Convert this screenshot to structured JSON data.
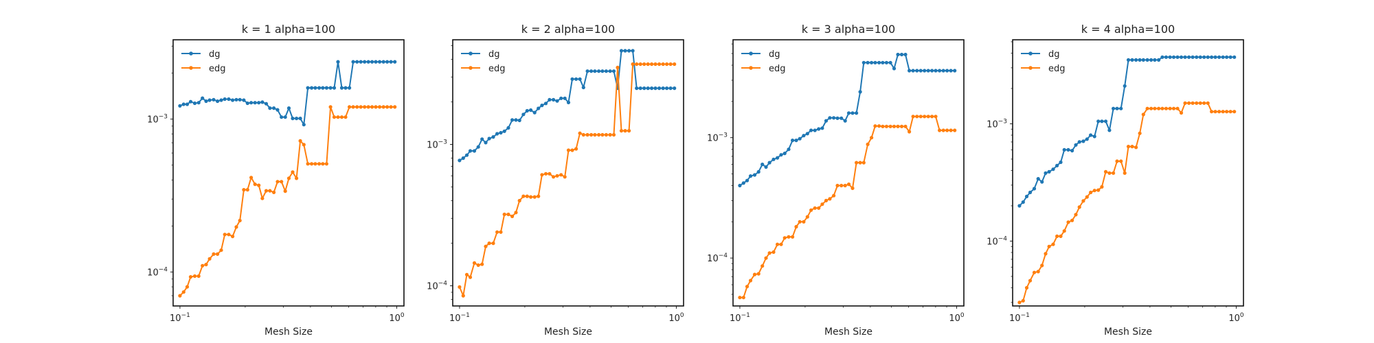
{
  "chart_data": [
    {
      "type": "line",
      "title": "k = 1 alpha=100",
      "xlabel": "Mesh Size",
      "ylabel": "",
      "xscale": "log",
      "yscale": "log",
      "xlim": [
        0.093,
        1.08
      ],
      "ylim": [
        6e-05,
        0.0033
      ],
      "xticks": [
        {
          "value": 0.1,
          "base": "10",
          "exp": "−1"
        },
        {
          "value": 1,
          "base": "10",
          "exp": "0"
        }
      ],
      "yticks": [
        {
          "value": 0.0001,
          "base": "10",
          "exp": "−4"
        },
        {
          "value": 0.001,
          "base": "10",
          "exp": "−3"
        }
      ],
      "grid": false,
      "legend": "top-left",
      "x": [
        0.1,
        0.104,
        0.108,
        0.112,
        0.117,
        0.122,
        0.127,
        0.132,
        0.137,
        0.143,
        0.149,
        0.155,
        0.161,
        0.168,
        0.175,
        0.182,
        0.189,
        0.197,
        0.205,
        0.213,
        0.222,
        0.231,
        0.24,
        0.25,
        0.26,
        0.271,
        0.282,
        0.294,
        0.306,
        0.318,
        0.331,
        0.345,
        0.359,
        0.373,
        0.389,
        0.405,
        0.421,
        0.439,
        0.456,
        0.475,
        0.495,
        0.515,
        0.536,
        0.558,
        0.581,
        0.605,
        0.63,
        0.656,
        0.683,
        0.711,
        0.74,
        0.77,
        0.801,
        0.834,
        0.869,
        0.904,
        0.941,
        0.98
      ],
      "series": [
        {
          "name": "dg",
          "color": "#1f77b4",
          "values": [
            0.00122,
            0.00125,
            0.00125,
            0.0013,
            0.00127,
            0.00128,
            0.00137,
            0.00131,
            0.00133,
            0.00134,
            0.00131,
            0.00133,
            0.00135,
            0.00135,
            0.00133,
            0.00134,
            0.00134,
            0.00133,
            0.00127,
            0.00128,
            0.00128,
            0.00128,
            0.00129,
            0.00126,
            0.00118,
            0.00118,
            0.00115,
            0.00103,
            0.00103,
            0.00118,
            0.00101,
            0.00101,
            0.00101,
            0.00092,
            0.0016,
            0.0016,
            0.0016,
            0.0016,
            0.0016,
            0.0016,
            0.0016,
            0.0016,
            0.00237,
            0.0016,
            0.0016,
            0.0016,
            0.00237,
            0.00237,
            0.00237,
            0.00237,
            0.00237,
            0.00237,
            0.00237,
            0.00237,
            0.00237,
            0.00237,
            0.00237,
            0.00237
          ]
        },
        {
          "name": "edg",
          "color": "#ff7f0e",
          "values": [
            7e-05,
            7.4e-05,
            8e-05,
            9.3e-05,
            9.4e-05,
            9.4e-05,
            0.00011,
            0.000112,
            0.000122,
            0.000131,
            0.000131,
            0.000139,
            0.000176,
            0.000176,
            0.000171,
            0.000197,
            0.000217,
            0.000345,
            0.000345,
            0.000415,
            0.000375,
            0.000369,
            0.000303,
            0.00034,
            0.00034,
            0.000332,
            0.00039,
            0.00039,
            0.000338,
            0.00041,
            0.00045,
            0.00041,
            0.00072,
            0.00068,
            0.00051,
            0.00051,
            0.00051,
            0.00051,
            0.00051,
            0.00051,
            0.0012,
            0.00103,
            0.00103,
            0.00103,
            0.00103,
            0.0012,
            0.0012,
            0.0012,
            0.0012,
            0.0012,
            0.0012,
            0.0012,
            0.0012,
            0.0012,
            0.0012,
            0.0012,
            0.0012,
            0.0012
          ]
        }
      ]
    },
    {
      "type": "line",
      "title": "k = 2 alpha=100",
      "xlabel": "Mesh Size",
      "ylabel": "",
      "xscale": "log",
      "yscale": "log",
      "xlim": [
        0.093,
        1.08
      ],
      "ylim": [
        7.2e-05,
        0.0055
      ],
      "xticks": [
        {
          "value": 0.1,
          "base": "10",
          "exp": "−1"
        },
        {
          "value": 1,
          "base": "10",
          "exp": "0"
        }
      ],
      "yticks": [
        {
          "value": 0.0001,
          "base": "10",
          "exp": "−4"
        },
        {
          "value": 0.001,
          "base": "10",
          "exp": "−3"
        }
      ],
      "grid": false,
      "legend": "top-left",
      "x": [
        0.1,
        0.104,
        0.108,
        0.112,
        0.117,
        0.122,
        0.127,
        0.132,
        0.137,
        0.143,
        0.149,
        0.155,
        0.161,
        0.168,
        0.175,
        0.182,
        0.189,
        0.197,
        0.205,
        0.213,
        0.222,
        0.231,
        0.24,
        0.25,
        0.26,
        0.271,
        0.282,
        0.294,
        0.306,
        0.318,
        0.331,
        0.345,
        0.359,
        0.373,
        0.389,
        0.405,
        0.421,
        0.439,
        0.456,
        0.475,
        0.495,
        0.515,
        0.536,
        0.558,
        0.581,
        0.605,
        0.63,
        0.656,
        0.683,
        0.711,
        0.74,
        0.77,
        0.801,
        0.834,
        0.869,
        0.904,
        0.941,
        0.98
      ],
      "series": [
        {
          "name": "dg",
          "color": "#1f77b4",
          "values": [
            0.00077,
            0.0008,
            0.00084,
            0.0009,
            0.0009,
            0.00096,
            0.00109,
            0.00103,
            0.0011,
            0.00113,
            0.00119,
            0.00121,
            0.00124,
            0.00131,
            0.00149,
            0.00149,
            0.00148,
            0.00163,
            0.00173,
            0.00175,
            0.00168,
            0.0018,
            0.00189,
            0.00195,
            0.00207,
            0.00207,
            0.00203,
            0.00212,
            0.00212,
            0.00198,
            0.0029,
            0.0029,
            0.0029,
            0.00253,
            0.0033,
            0.0033,
            0.0033,
            0.0033,
            0.0033,
            0.0033,
            0.0033,
            0.0033,
            0.0025,
            0.0046,
            0.0046,
            0.0046,
            0.0046,
            0.0025,
            0.0025,
            0.0025,
            0.0025,
            0.0025,
            0.0025,
            0.0025,
            0.0025,
            0.0025,
            0.0025,
            0.0025
          ]
        },
        {
          "name": "edg",
          "color": "#ff7f0e",
          "values": [
            9.8e-05,
            8.5e-05,
            0.00012,
            0.000115,
            0.000145,
            0.00014,
            0.000142,
            0.00019,
            0.0002,
            0.0002,
            0.00024,
            0.00024,
            0.00032,
            0.00032,
            0.00031,
            0.00033,
            0.0004,
            0.00043,
            0.00043,
            0.000425,
            0.000425,
            0.00043,
            0.00061,
            0.00062,
            0.00062,
            0.00059,
            0.0006,
            0.00061,
            0.00059,
            0.00091,
            0.00091,
            0.00093,
            0.0012,
            0.00117,
            0.00117,
            0.00117,
            0.00117,
            0.00117,
            0.00117,
            0.00117,
            0.00117,
            0.00117,
            0.0035,
            0.00125,
            0.00125,
            0.00125,
            0.0037,
            0.0037,
            0.0037,
            0.0037,
            0.0037,
            0.0037,
            0.0037,
            0.0037,
            0.0037,
            0.0037,
            0.0037,
            0.0037
          ]
        }
      ]
    },
    {
      "type": "line",
      "title": "k = 3 alpha=100",
      "xlabel": "Mesh Size",
      "ylabel": "",
      "xscale": "log",
      "yscale": "log",
      "xlim": [
        0.093,
        1.08
      ],
      "ylim": [
        4e-05,
        0.0065
      ],
      "xticks": [
        {
          "value": 0.1,
          "base": "10",
          "exp": "−1"
        },
        {
          "value": 1,
          "base": "10",
          "exp": "0"
        }
      ],
      "yticks": [
        {
          "value": 0.0001,
          "base": "10",
          "exp": "−4"
        },
        {
          "value": 0.001,
          "base": "10",
          "exp": "−3"
        }
      ],
      "grid": false,
      "legend": "top-left",
      "x": [
        0.1,
        0.104,
        0.108,
        0.112,
        0.117,
        0.122,
        0.127,
        0.132,
        0.137,
        0.143,
        0.149,
        0.155,
        0.161,
        0.168,
        0.175,
        0.182,
        0.189,
        0.197,
        0.205,
        0.213,
        0.222,
        0.231,
        0.24,
        0.25,
        0.26,
        0.271,
        0.282,
        0.294,
        0.306,
        0.318,
        0.331,
        0.345,
        0.359,
        0.373,
        0.389,
        0.405,
        0.421,
        0.439,
        0.456,
        0.475,
        0.495,
        0.515,
        0.536,
        0.558,
        0.581,
        0.605,
        0.63,
        0.656,
        0.683,
        0.711,
        0.74,
        0.77,
        0.801,
        0.834,
        0.869,
        0.904,
        0.941,
        0.98
      ],
      "series": [
        {
          "name": "dg",
          "color": "#1f77b4",
          "values": [
            0.0004,
            0.00042,
            0.00044,
            0.00048,
            0.00049,
            0.00052,
            0.0006,
            0.00057,
            0.00062,
            0.00066,
            0.00068,
            0.00072,
            0.00074,
            0.0008,
            0.00095,
            0.00095,
            0.00098,
            0.00104,
            0.00108,
            0.00115,
            0.00115,
            0.00118,
            0.0012,
            0.00138,
            0.00146,
            0.00146,
            0.00145,
            0.00145,
            0.00138,
            0.0016,
            0.0016,
            0.0016,
            0.0024,
            0.0042,
            0.0042,
            0.0042,
            0.0042,
            0.0042,
            0.0042,
            0.0042,
            0.0042,
            0.00375,
            0.0049,
            0.0049,
            0.0049,
            0.0036,
            0.0036,
            0.0036,
            0.0036,
            0.0036,
            0.0036,
            0.0036,
            0.0036,
            0.0036,
            0.0036,
            0.0036,
            0.0036,
            0.0036
          ]
        },
        {
          "name": "edg",
          "color": "#ff7f0e",
          "values": [
            4.7e-05,
            4.7e-05,
            5.8e-05,
            6.5e-05,
            7.3e-05,
            7.4e-05,
            8.6e-05,
            0.0001,
            0.00011,
            0.000112,
            0.00013,
            0.00013,
            0.000147,
            0.00015,
            0.00015,
            0.000182,
            0.0002,
            0.0002,
            0.00022,
            0.00025,
            0.00026,
            0.00026,
            0.00028,
            0.0003,
            0.00031,
            0.00033,
            0.0004,
            0.0004,
            0.0004,
            0.00041,
            0.00038,
            0.00062,
            0.00062,
            0.00062,
            0.00088,
            0.001,
            0.00125,
            0.00125,
            0.00124,
            0.00124,
            0.00124,
            0.00124,
            0.00124,
            0.00124,
            0.00124,
            0.00112,
            0.0015,
            0.0015,
            0.0015,
            0.0015,
            0.0015,
            0.0015,
            0.0015,
            0.00115,
            0.00115,
            0.00115,
            0.00115,
            0.00115
          ]
        }
      ]
    },
    {
      "type": "line",
      "title": "k = 4 alpha=100",
      "xlabel": "Mesh Size",
      "ylabel": "",
      "xscale": "log",
      "yscale": "log",
      "xlim": [
        0.093,
        1.08
      ],
      "ylim": [
        2.8e-05,
        0.0052
      ],
      "xticks": [
        {
          "value": 0.1,
          "base": "10",
          "exp": "−1"
        },
        {
          "value": 1,
          "base": "10",
          "exp": "0"
        }
      ],
      "yticks": [
        {
          "value": 0.0001,
          "base": "10",
          "exp": "−4"
        },
        {
          "value": 0.001,
          "base": "10",
          "exp": "−3"
        }
      ],
      "grid": false,
      "legend": "top-left",
      "x": [
        0.1,
        0.104,
        0.108,
        0.112,
        0.117,
        0.122,
        0.127,
        0.132,
        0.137,
        0.143,
        0.149,
        0.155,
        0.161,
        0.168,
        0.175,
        0.182,
        0.189,
        0.197,
        0.205,
        0.213,
        0.222,
        0.231,
        0.24,
        0.25,
        0.26,
        0.271,
        0.282,
        0.294,
        0.306,
        0.318,
        0.331,
        0.345,
        0.359,
        0.373,
        0.389,
        0.405,
        0.421,
        0.439,
        0.456,
        0.475,
        0.495,
        0.515,
        0.536,
        0.558,
        0.581,
        0.605,
        0.63,
        0.656,
        0.683,
        0.711,
        0.74,
        0.77,
        0.801,
        0.834,
        0.869,
        0.904,
        0.941,
        0.98
      ],
      "series": [
        {
          "name": "dg",
          "color": "#1f77b4",
          "values": [
            0.0002,
            0.000215,
            0.00024,
            0.00026,
            0.00028,
            0.00034,
            0.00032,
            0.00038,
            0.00039,
            0.00041,
            0.00044,
            0.00047,
            0.0006,
            0.0006,
            0.00059,
            0.00066,
            0.0007,
            0.00071,
            0.00074,
            0.0008,
            0.00078,
            0.00105,
            0.00105,
            0.00105,
            0.00088,
            0.00135,
            0.00135,
            0.00135,
            0.0021,
            0.0035,
            0.0035,
            0.0035,
            0.0035,
            0.0035,
            0.0035,
            0.0035,
            0.0035,
            0.0035,
            0.0037,
            0.0037,
            0.0037,
            0.0037,
            0.0037,
            0.0037,
            0.0037,
            0.0037,
            0.0037,
            0.0037,
            0.0037,
            0.0037,
            0.0037,
            0.0037,
            0.0037,
            0.0037,
            0.0037,
            0.0037,
            0.0037,
            0.0037
          ]
        },
        {
          "name": "edg",
          "color": "#ff7f0e",
          "values": [
            3e-05,
            3.1e-05,
            4e-05,
            4.6e-05,
            5.4e-05,
            5.5e-05,
            6.2e-05,
            7.8e-05,
            9e-05,
            9.4e-05,
            0.00011,
            0.00011,
            0.000122,
            0.000145,
            0.00015,
            0.000168,
            0.000195,
            0.00022,
            0.000238,
            0.00026,
            0.00027,
            0.000272,
            0.00029,
            0.00039,
            0.00038,
            0.00038,
            0.00048,
            0.00048,
            0.00038,
            0.00064,
            0.00064,
            0.00063,
            0.00083,
            0.0012,
            0.00135,
            0.00135,
            0.00135,
            0.00135,
            0.00135,
            0.00135,
            0.00135,
            0.00135,
            0.00135,
            0.00124,
            0.0015,
            0.0015,
            0.0015,
            0.0015,
            0.0015,
            0.0015,
            0.0015,
            0.00127,
            0.00127,
            0.00127,
            0.00127,
            0.00127,
            0.00127,
            0.00127
          ]
        }
      ]
    }
  ]
}
